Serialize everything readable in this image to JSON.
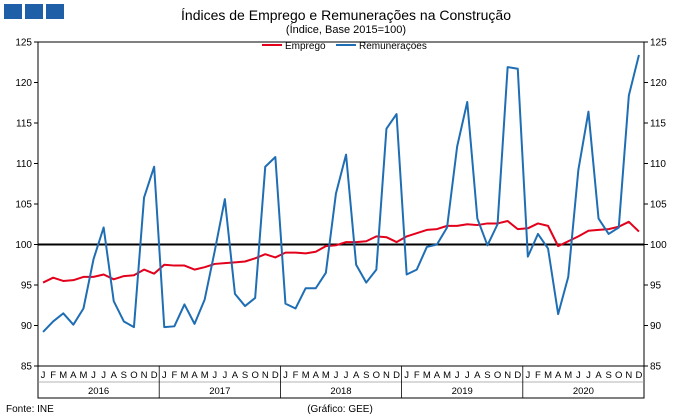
{
  "logo": {
    "squares": 3,
    "color": "#1f5fa8"
  },
  "colors": {
    "emprego": "#e3001b",
    "remuneracoes": "#1f6eb4",
    "reference": "#000000",
    "axis": "#000000"
  },
  "chart_data": {
    "type": "line",
    "title": "Índices de Emprego e Remunerações na Construção",
    "subtitle": "(Índice, Base 2015=100)",
    "source": "Fonte: INE",
    "credit": "(Gráfico: GEE)",
    "ylim": [
      85,
      125
    ],
    "yticks": [
      85,
      90,
      95,
      100,
      105,
      110,
      115,
      120,
      125
    ],
    "ytick_labels": [
      "85",
      "90",
      "95",
      "100",
      "105",
      "110",
      "115",
      "120",
      "125"
    ],
    "reference_line": 100,
    "legend_position": "top-center",
    "month_labels": [
      "J",
      "F",
      "M",
      "A",
      "M",
      "J",
      "J",
      "A",
      "S",
      "O",
      "N",
      "D"
    ],
    "years": [
      "2016",
      "2017",
      "2018",
      "2019",
      "2020"
    ],
    "series": [
      {
        "name": "Emprego",
        "color": "#e3001b",
        "values": [
          95.3,
          95.9,
          95.5,
          95.6,
          96.0,
          96.0,
          96.3,
          95.7,
          96.1,
          96.2,
          96.9,
          96.4,
          97.5,
          97.4,
          97.4,
          96.9,
          97.2,
          97.6,
          97.7,
          97.8,
          97.9,
          98.3,
          98.8,
          98.4,
          99.0,
          99.0,
          98.9,
          99.1,
          99.8,
          99.9,
          100.3,
          100.3,
          100.4,
          101.0,
          100.9,
          100.3,
          101.0,
          101.4,
          101.8,
          101.9,
          102.3,
          102.3,
          102.5,
          102.4,
          102.6,
          102.6,
          102.9,
          101.9,
          102.0,
          102.6,
          102.3,
          99.8,
          100.4,
          101.0,
          101.7,
          101.8,
          101.9,
          102.2,
          102.8,
          101.6
        ]
      },
      {
        "name": "Remunerações",
        "color": "#1f6eb4",
        "values": [
          89.2,
          90.5,
          91.5,
          90.1,
          92.1,
          98.2,
          102.1,
          93.0,
          90.5,
          89.8,
          105.8,
          109.6,
          89.8,
          89.9,
          92.6,
          90.2,
          93.2,
          99.2,
          105.6,
          93.9,
          92.4,
          93.4,
          109.6,
          110.8,
          92.7,
          92.1,
          94.6,
          94.6,
          96.5,
          106.3,
          111.1,
          97.5,
          95.3,
          96.9,
          114.3,
          116.1,
          96.3,
          96.9,
          99.7,
          100.0,
          102.1,
          112.1,
          117.6,
          103.2,
          99.9,
          102.5,
          121.9,
          121.7,
          98.5,
          101.3,
          99.5,
          91.4,
          96.0,
          109.2,
          116.4,
          103.2,
          101.3,
          102.1,
          118.4,
          123.4
        ]
      }
    ]
  }
}
